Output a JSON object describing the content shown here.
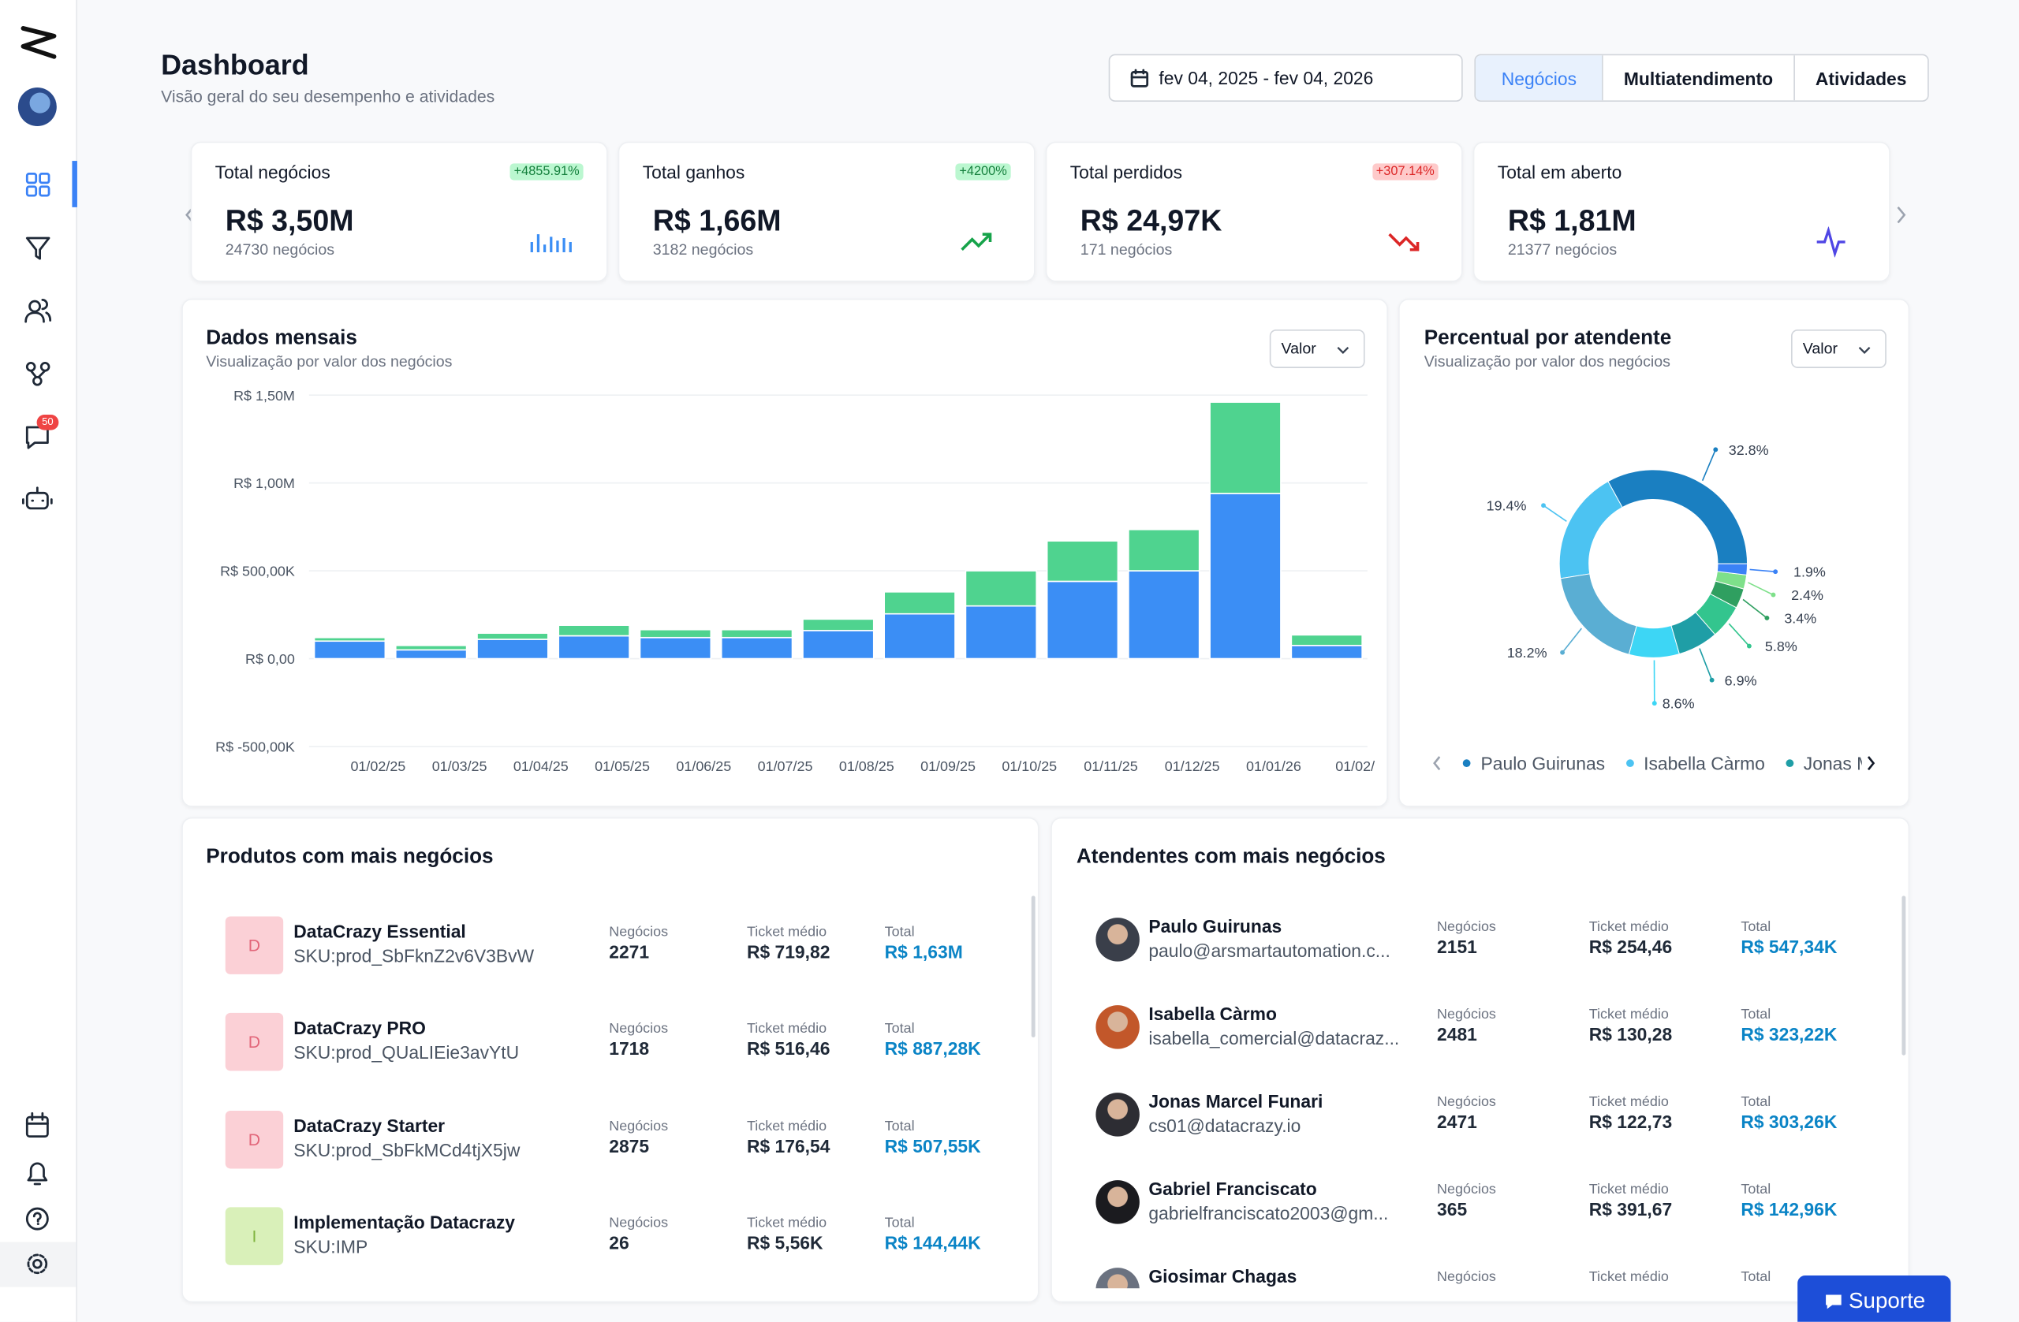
{
  "sidebar": {
    "chat_badge": "50"
  },
  "header": {
    "title": "Dashboard",
    "subtitle": "Visão geral do seu desempenho e atividades",
    "date_range": "fev 04, 2025 - fev 04, 2026",
    "tabs": [
      "Negócios",
      "Multiatendimento",
      "Atividades"
    ]
  },
  "kpis": [
    {
      "label": "Total negócios",
      "change": "+4855.91%",
      "value": "R$ 3,50M",
      "count": "24730 negócios"
    },
    {
      "label": "Total ganhos",
      "change": "+4200%",
      "value": "R$ 1,66M",
      "count": "3182 negócios"
    },
    {
      "label": "Total perdidos",
      "change": "+307.14%",
      "value": "R$ 24,97K",
      "count": "171 negócios"
    },
    {
      "label": "Total em aberto",
      "value": "R$ 1,81M",
      "count": "21377 negócios"
    }
  ],
  "monthly_chart": {
    "type": "bar",
    "stacked": true,
    "title": "Dados mensais",
    "subtitle": "Visualização por valor dos negócios",
    "selector": "Valor",
    "categories": [
      "01/02/25",
      "01/03/25",
      "01/04/25",
      "01/05/25",
      "01/06/25",
      "01/07/25",
      "01/08/25",
      "01/09/25",
      "01/10/25",
      "01/11/25",
      "01/12/25",
      "01/01/26",
      "01/02/"
    ],
    "series": [
      {
        "color": "#3b8ef5",
        "values": [
          100000,
          50000,
          110000,
          130000,
          120000,
          120000,
          160000,
          255000,
          300000,
          440000,
          500000,
          940000,
          75000
        ]
      },
      {
        "color": "#4fd38f",
        "values": [
          20000,
          25000,
          35000,
          60000,
          45000,
          45000,
          65000,
          125000,
          200000,
          230000,
          235000,
          520000,
          60000
        ]
      }
    ],
    "ylim": [
      -500000,
      1500000
    ],
    "yticks": [
      {
        "value": -500000,
        "label": "R$ -500,00K"
      },
      {
        "value": 0,
        "label": "R$ 0,00"
      },
      {
        "value": 500000,
        "label": "R$ 500,00K"
      },
      {
        "value": 1000000,
        "label": "R$ 1,00M"
      },
      {
        "value": 1500000,
        "label": "R$ 1,50M"
      }
    ],
    "grid": true
  },
  "agent_share": {
    "type": "pie",
    "title": "Percentual por atendente",
    "subtitle": "Visualização por valor dos negócios",
    "selector": "Valor",
    "values": [
      32.8,
      19.4,
      18.2,
      8.6,
      6.9,
      5.8,
      3.4,
      2.4,
      1.9
    ],
    "value_labels": [
      "32.8%",
      "19.4%",
      "18.2%",
      "8.6%",
      "6.9%",
      "5.8%",
      "3.4%",
      "2.4%",
      "1.9%"
    ],
    "colors": [
      "#1a7fc1",
      "#4cc3f2",
      "#5aaed3",
      "#3dd6f5",
      "#1f9ea6",
      "#33c58e",
      "#2f9f60",
      "#7ee08a",
      "#3b82f6"
    ],
    "donut": true,
    "legend": [
      {
        "name": "Paulo Guirunas",
        "color": "#1a7fc1"
      },
      {
        "name": "Isabella Càrmo",
        "color": "#4cc3f2"
      },
      {
        "name": "Jonas Marcel Funari",
        "color": "#1f9ea6"
      }
    ]
  },
  "products": {
    "title": "Produtos com mais negócios",
    "columns": [
      "Negócios",
      "Ticket médio",
      "Total"
    ],
    "rows": [
      {
        "initial": "D",
        "name": "DataCrazy Essential",
        "sku": "SKU:prod_SbFknZ2v6V3BvW",
        "deals": 2271,
        "ticket": "R$ 719,82",
        "total": "R$ 1,63M"
      },
      {
        "initial": "D",
        "name": "DataCrazy PRO",
        "sku": "SKU:prod_QUaLIEie3avYtU",
        "deals": 1718,
        "ticket": "R$ 516,46",
        "total": "R$ 887,28K"
      },
      {
        "initial": "D",
        "name": "DataCrazy Starter",
        "sku": "SKU:prod_SbFkMCd4tjX5jw",
        "deals": 2875,
        "ticket": "R$ 176,54",
        "total": "R$ 507,55K"
      },
      {
        "initial": "I",
        "name": "Implementação Datacrazy",
        "sku": "SKU:IMP",
        "deals": 26,
        "ticket": "R$ 5,56K",
        "total": "R$ 144,44K"
      }
    ]
  },
  "agents": {
    "title": "Atendentes com mais negócios",
    "columns": [
      "Negócios",
      "Ticket médio",
      "Total"
    ],
    "rows": [
      {
        "name": "Paulo Guirunas",
        "email": "paulo@arsmartautomation.c...",
        "deals": 2151,
        "ticket": "R$ 254,46",
        "total": "R$ 547,34K"
      },
      {
        "name": "Isabella Càrmo",
        "email": "isabella_comercial@datacraz...",
        "deals": 2481,
        "ticket": "R$ 130,28",
        "total": "R$ 323,22K"
      },
      {
        "name": "Jonas Marcel Funari",
        "email": "cs01@datacrazy.io",
        "deals": 2471,
        "ticket": "R$ 122,73",
        "total": "R$ 303,26K"
      },
      {
        "name": "Gabriel Franciscato",
        "email": "gabrielfranciscato2003@gm...",
        "deals": 365,
        "ticket": "R$ 391,67",
        "total": "R$ 142,96K"
      },
      {
        "name": "Giosimar Chagas"
      }
    ]
  },
  "support": "Suporte"
}
